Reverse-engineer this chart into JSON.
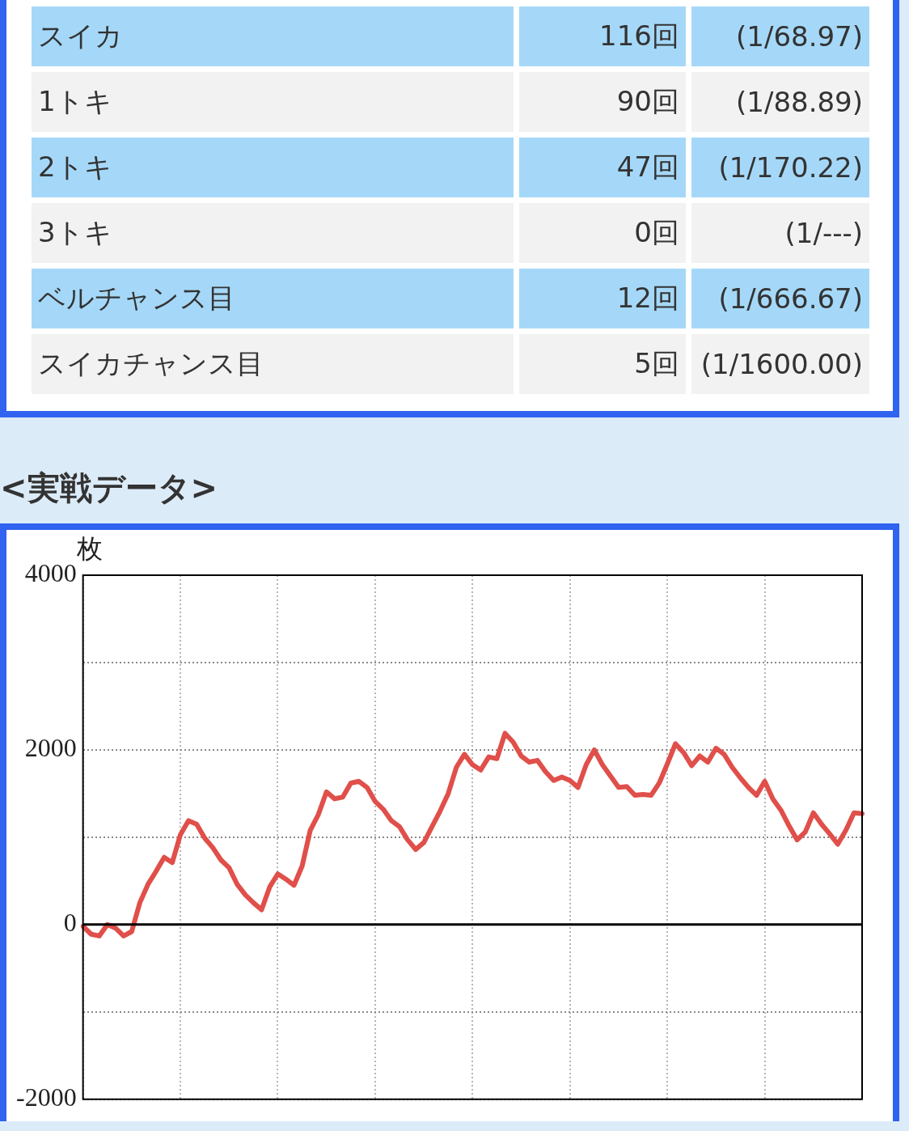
{
  "chart_data": [
    {
      "type": "other",
      "annotations": [
        "スイカ",
        "116回",
        "(1/68.97)",
        "1トキ",
        "90回",
        "(1/88.89)",
        "2トキ",
        "47回",
        "(1/170.22)",
        "3トキ",
        "0回",
        "(1/---)",
        "ベルチャンス目",
        "12回",
        "(1/666.67)",
        "スイカチャンス目",
        "5回",
        "(1/1600.00)"
      ]
    },
    {
      "type": "line",
      "title": "<実戦データ>",
      "ylabel": "枚",
      "series": [
        {
          "color": "#e04f4a",
          "values": [
            -20,
            -110,
            -130,
            0,
            -40,
            -130,
            -80,
            250,
            460,
            610,
            770,
            710,
            1030,
            1190,
            1150,
            990,
            880,
            740,
            650,
            460,
            340,
            250,
            170,
            430,
            580,
            520,
            450,
            670,
            1080,
            1260,
            1520,
            1440,
            1460,
            1620,
            1640,
            1570,
            1410,
            1320,
            1190,
            1120,
            970,
            860,
            940,
            1120,
            1300,
            1500,
            1800,
            1950,
            1830,
            1770,
            1920,
            1900,
            2190,
            2090,
            1930,
            1860,
            1880,
            1750,
            1650,
            1690,
            1650,
            1570,
            1830,
            2000,
            1830,
            1700,
            1570,
            1580,
            1480,
            1490,
            1480,
            1620,
            1840,
            2070,
            1970,
            1820,
            1930,
            1860,
            2020,
            1950,
            1800,
            1680,
            1570,
            1480,
            1640,
            1440,
            1310,
            1130,
            970,
            1060,
            1280,
            1150,
            1040,
            920,
            1080,
            1280,
            1270
          ]
        }
      ],
      "categories": [
        null,
        null,
        null,
        null,
        null,
        null,
        null,
        null,
        null,
        null,
        null,
        null,
        null,
        null,
        null,
        null,
        null,
        null,
        null,
        null,
        null,
        null,
        null,
        null,
        null,
        null,
        null,
        null,
        null,
        null,
        null,
        null,
        null,
        null,
        null,
        null,
        null,
        null,
        null,
        null,
        null,
        null,
        null,
        null,
        null,
        null,
        null,
        null,
        null,
        null,
        null,
        null,
        null,
        null,
        null,
        null,
        null,
        null,
        null,
        null,
        null,
        null,
        null,
        null,
        null,
        null,
        null,
        null,
        null,
        null,
        null,
        null,
        null,
        null,
        null,
        null,
        null,
        null,
        null,
        null,
        null,
        null,
        null,
        null,
        null,
        null,
        null,
        null,
        null,
        null,
        null,
        null,
        null,
        null,
        null,
        null,
        null
      ],
      "ylim": [
        -2000,
        4000
      ],
      "yticks": [
        -2000,
        {
          "value": -1000,
          "label": null
        },
        0,
        {
          "value": 1000,
          "label": null
        },
        2000,
        {
          "value": 3000,
          "label": null
        },
        4000
      ],
      "ref_lines": [
        {
          "axis": "y",
          "value": 0,
          "color": "#000000"
        }
      ],
      "grid": true,
      "tick_labels": "y",
      "marker": "none",
      "line_style": "solid",
      "legend": false
    }
  ]
}
